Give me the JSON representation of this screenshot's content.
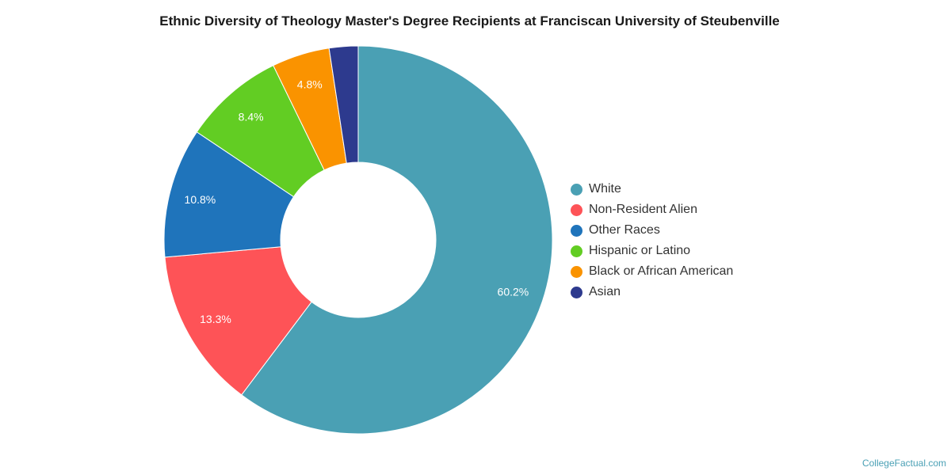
{
  "chart_data": {
    "type": "pie",
    "title": "Ethnic Diversity of Theology Master's Degree Recipients at Franciscan University of Steubenville",
    "donut": true,
    "legend_position": "right",
    "slices": [
      {
        "label": "White",
        "value": 60.2,
        "value_label": "60.2%",
        "color": "#4aa0b4"
      },
      {
        "label": "Non-Resident Alien",
        "value": 13.3,
        "value_label": "13.3%",
        "color": "#fe5357"
      },
      {
        "label": "Other Races",
        "value": 10.8,
        "value_label": "10.8%",
        "color": "#1f74bb"
      },
      {
        "label": "Hispanic or Latino",
        "value": 8.4,
        "value_label": "8.4%",
        "color": "#62cd23"
      },
      {
        "label": "Black or African American",
        "value": 4.8,
        "value_label": "4.8%",
        "color": "#fa9300"
      },
      {
        "label": "Asian",
        "value": 2.4,
        "value_label": "",
        "color": "#2d3a8e"
      }
    ]
  },
  "footer": {
    "credit": "CollegeFactual.com"
  }
}
